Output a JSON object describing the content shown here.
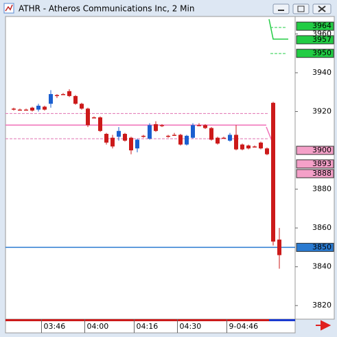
{
  "window": {
    "title": "ATHR - Atheros Communications Inc, 2 Min"
  },
  "chart_data": {
    "type": "candlestick",
    "categories": [
      null,
      null,
      null,
      null,
      null,
      "03:46",
      null,
      null,
      null,
      null,
      null,
      null,
      "04:00",
      null,
      null,
      null,
      null,
      null,
      null,
      null,
      "04:16",
      null,
      null,
      null,
      null,
      null,
      null,
      "04:30",
      null,
      null,
      null,
      null,
      null,
      null,
      null,
      "9-04:46",
      null,
      null,
      null,
      null,
      null,
      null,
      null,
      null
    ],
    "open": [
      3921.5,
      3921,
      3921,
      3922,
      3921,
      3922.5,
      3924,
      3928.5,
      3929,
      3930.5,
      3928,
      3924,
      3921.5,
      3917,
      3917,
      3908.5,
      3906.5,
      3907,
      3908.5,
      3906.5,
      3901,
      3907.5,
      3906,
      3913.5,
      3913,
      3907.5,
      3908,
      3908,
      3903,
      3906.5,
      3913,
      3913,
      3911.5,
      3906.5,
      3906.5,
      3905,
      3908,
      3903,
      3902.5,
      3902,
      3904,
      3901,
      3924.5,
      3854
    ],
    "high": [
      3922,
      3921.5,
      3921.5,
      3922.5,
      3924,
      3923,
      3931,
      3929,
      3929.5,
      3931.5,
      3928.5,
      3924.5,
      3922,
      3917.5,
      3917.5,
      3909,
      3908,
      3912,
      3909,
      3907,
      3906,
      3908,
      3914,
      3915,
      3913.5,
      3908,
      3909,
      3908.5,
      3908,
      3914,
      3914,
      3913.5,
      3912,
      3907,
      3907,
      3909,
      3913,
      3903.5,
      3903,
      3902.5,
      3904.5,
      3901.5,
      3925,
      3860
    ],
    "low": [
      3920.5,
      3920.5,
      3920.5,
      3920,
      3920,
      3920.5,
      3922,
      3927,
      3928.5,
      3927.5,
      3923.5,
      3921,
      3912,
      3916.5,
      3909.5,
      3903,
      3901,
      3905,
      3904.5,
      3898,
      3899,
      3906.5,
      3905.5,
      3909.5,
      3912,
      3906.5,
      3907.5,
      3902.5,
      3902.5,
      3906,
      3912.5,
      3911,
      3905,
      3903,
      3906,
      3904.5,
      3900,
      3900,
      3900.5,
      3901.5,
      3900.5,
      3897.5,
      3851,
      3839
    ],
    "close": [
      3921,
      3921,
      3921,
      3920.5,
      3923,
      3921,
      3929,
      3928,
      3929,
      3928,
      3924,
      3921.5,
      3913,
      3917,
      3910,
      3904,
      3902,
      3910,
      3905,
      3900,
      3905.5,
      3907,
      3913,
      3910,
      3913,
      3907,
      3908,
      3903,
      3907.5,
      3913,
      3913,
      3911.5,
      3905.5,
      3903.5,
      3906.5,
      3908,
      3900.5,
      3900.5,
      3901,
      3902,
      3901,
      3898,
      3853,
      3846
    ],
    "up_color": "#1a5fd0",
    "down_color": "#cc1a1a",
    "ylim": [
      3813,
      3969
    ],
    "yticks": [
      3820,
      3840,
      3860,
      3880,
      3920,
      3940,
      3960
    ],
    "levels": [
      {
        "value": 3919,
        "color": "#e070b0",
        "dash": true
      },
      {
        "value": 3913,
        "color": "#f070b8",
        "dash": false
      },
      {
        "value": 3906,
        "color": "#e070b0",
        "dash": true
      },
      {
        "value": 3850,
        "color": "#2a7ad0",
        "dash": false
      }
    ],
    "price_labels": [
      {
        "value": 3964,
        "color": "#22cc44"
      },
      {
        "value": 3957,
        "color": "#22cc44"
      },
      {
        "value": 3950,
        "color": "#22cc44"
      },
      {
        "value": 3900,
        "color": "#f4a0c8"
      },
      {
        "value": 3893,
        "color": "#f4a0c8"
      },
      {
        "value": 3888,
        "color": "#f4a0c8"
      },
      {
        "value": 3850,
        "color": "#2a7ad0"
      }
    ]
  }
}
